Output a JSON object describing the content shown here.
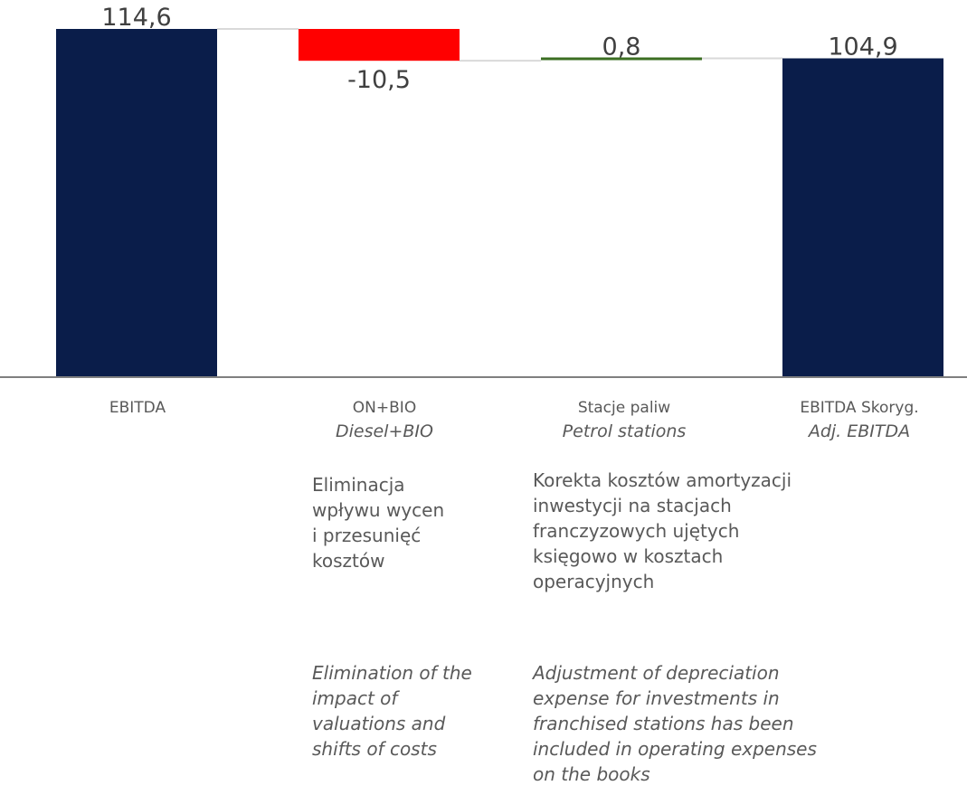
{
  "colors": {
    "total": "#0a1d4a",
    "negative": "#ff0000",
    "positive": "#3b6e22",
    "axis": "#7f7f7f",
    "connector": "#d9d9d9"
  },
  "chart_data": {
    "type": "bar",
    "subtype": "waterfall",
    "categories": [
      "EBITDA",
      "ON+BIO",
      "Stacje paliw",
      "EBITDA Skoryg."
    ],
    "values": [
      114.6,
      -10.5,
      0.8,
      104.9
    ],
    "kinds": [
      "total",
      "delta",
      "delta",
      "total"
    ],
    "value_labels": [
      "114,6",
      "-10,5",
      "0,8",
      "104,9"
    ],
    "ylim": [
      0,
      116
    ]
  },
  "labels": {
    "cat0": {
      "pl": "EBITDA",
      "en": ""
    },
    "cat1": {
      "pl": "ON+BIO",
      "en": "Diesel+BIO"
    },
    "cat2": {
      "pl": "Stacje paliw",
      "en": "Petrol stations"
    },
    "cat3": {
      "pl": "EBITDA Skoryg.",
      "en": "Adj. EBITDA"
    }
  },
  "notes": {
    "on_bio_pl": [
      "Eliminacja",
      "wpływu wycen",
      "i przesunięć",
      "kosztów"
    ],
    "on_bio_en": [
      "Elimination of the",
      "impact of",
      "valuations and",
      "shifts of costs"
    ],
    "stations_pl": [
      "Korekta kosztów amortyzacji",
      "inwestycji na stacjach",
      "franczyzowych ujętych",
      "księgowo w kosztach",
      "operacyjnych"
    ],
    "stations_en": [
      "Adjustment of depreciation",
      "expense for investments in",
      "franchised stations has been",
      "included in operating expenses",
      "on the books"
    ]
  }
}
